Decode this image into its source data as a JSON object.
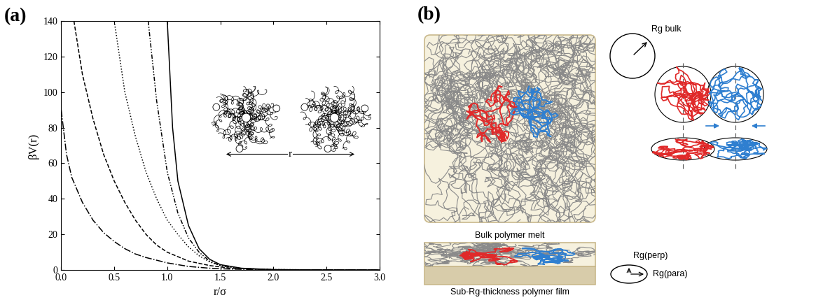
{
  "chart_data": {
    "type": "line",
    "panel": "(a)",
    "x_label": "r/σ",
    "y_label": "βV(r)",
    "xlim": [
      0,
      3
    ],
    "ylim": [
      0,
      140
    ],
    "xticks": [
      {
        "value": 0,
        "label": "0.0"
      },
      {
        "value": 0.5,
        "label": "0.5"
      },
      {
        "value": 1,
        "label": "1.0"
      },
      {
        "value": 1.5,
        "label": "1.5"
      },
      {
        "value": 2,
        "label": "2.0"
      },
      {
        "value": 2.5,
        "label": "2.5"
      },
      {
        "value": 3,
        "label": "3.0"
      }
    ],
    "yticks": [
      0,
      20,
      40,
      60,
      80,
      100,
      120,
      140
    ],
    "annotations": [
      "r"
    ],
    "series": [
      {
        "color": "#000000",
        "line_style": "solid",
        "x": [
          1.0,
          1.05,
          1.1,
          1.2,
          1.3,
          1.4,
          1.5,
          1.7,
          2.0,
          2.5,
          3.0
        ],
        "values": [
          140,
          80,
          50,
          25,
          12,
          6,
          3,
          1,
          0.2,
          0,
          0
        ]
      },
      {
        "color": "#000000",
        "line_style": "dash_dot_dot",
        "x": [
          0.82,
          0.9,
          1.0,
          1.1,
          1.2,
          1.3,
          1.4,
          1.5,
          1.7,
          2.0,
          3.0
        ],
        "values": [
          140,
          95,
          55,
          32,
          18,
          10,
          5,
          2.5,
          0.8,
          0.2,
          0
        ]
      },
      {
        "color": "#000000",
        "line_style": "dotted",
        "x": [
          0.5,
          0.6,
          0.7,
          0.8,
          0.9,
          1.0,
          1.1,
          1.2,
          1.3,
          1.4,
          1.5,
          1.7,
          2.0,
          3.0
        ],
        "values": [
          140,
          100,
          75,
          55,
          40,
          28,
          20,
          13,
          8,
          4.5,
          2.5,
          0.8,
          0.2,
          0
        ]
      },
      {
        "color": "#000000",
        "line_style": "dashed",
        "x": [
          0.12,
          0.2,
          0.3,
          0.4,
          0.5,
          0.6,
          0.7,
          0.8,
          0.9,
          1.0,
          1.2,
          1.4,
          1.6,
          2.0,
          3.0
        ],
        "values": [
          140,
          110,
          85,
          65,
          50,
          38,
          28,
          20,
          14,
          10,
          5,
          2.5,
          1,
          0.2,
          0
        ]
      },
      {
        "color": "#000000",
        "line_style": "dash_dot",
        "x": [
          0.0,
          0.05,
          0.1,
          0.2,
          0.3,
          0.4,
          0.5,
          0.6,
          0.7,
          0.8,
          1.0,
          1.2,
          1.4,
          1.6,
          2.0,
          3.0
        ],
        "values": [
          90,
          65,
          52,
          38,
          28,
          21,
          16,
          12,
          9,
          7,
          4,
          2,
          1,
          0.5,
          0.1,
          0
        ]
      }
    ]
  },
  "diagram": {
    "panel": "(b)",
    "labels": {
      "bulk": "Bulk polymer melt",
      "film": "Sub-Rg-thickness polymer film",
      "rg_bulk": "Rg bulk",
      "rg_perp": "Rg(perp)",
      "rg_para": "Rg(para)"
    }
  }
}
